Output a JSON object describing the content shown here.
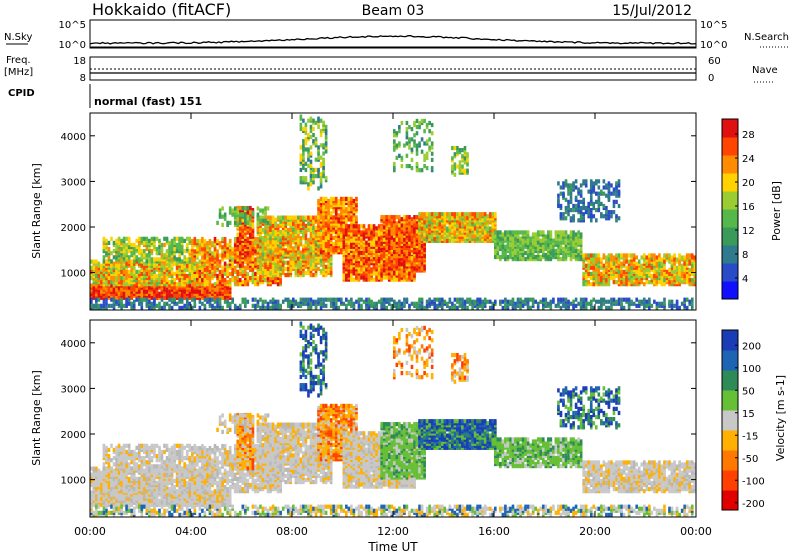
{
  "header": {
    "station": "Hokkaido (fitACF)",
    "beam": "Beam 03",
    "date": "15/Jul/2012"
  },
  "strips": {
    "nsky_label": "N.Sky",
    "nsky_ticks": [
      "10^5",
      "10^0"
    ],
    "nsearch_label": "N.Search",
    "freq_label": "Freq.",
    "freq_unit": "[MHz]",
    "freq_ticks": [
      "18",
      "8"
    ],
    "nave_label": "Nave",
    "nave_ticks": [
      "60",
      "0"
    ],
    "cpid_label": "CPID",
    "cpid_text": "normal (fast) 151"
  },
  "chart_data": [
    {
      "type": "heatmap",
      "name": "power",
      "ylabel": "Slant Range [km]",
      "ylim": [
        180,
        4500
      ],
      "yticks": [
        1000,
        2000,
        3000,
        4000
      ],
      "xlim": [
        0,
        24
      ],
      "colorbar": {
        "label": "Power [dB]",
        "ticks": [
          4,
          8,
          12,
          16,
          20,
          24,
          28
        ],
        "colors": [
          "#1010ff",
          "#2a4bc8",
          "#2f7a8c",
          "#3a9a5a",
          "#56b84a",
          "#9acd32",
          "#ffd200",
          "#ff8c00",
          "#ff4500",
          "#e01010"
        ],
        "range": [
          0,
          30
        ]
      }
    },
    {
      "type": "heatmap",
      "name": "velocity",
      "ylabel": "Slant Range [km]",
      "ylim": [
        180,
        4500
      ],
      "yticks": [
        1000,
        2000,
        3000,
        4000
      ],
      "xlim": [
        0,
        24
      ],
      "xlabel": "Time UT",
      "xticks": [
        "00:00",
        "04:00",
        "08:00",
        "12:00",
        "16:00",
        "20:00",
        "00:00"
      ],
      "colorbar": {
        "label": "Velocity [m s-1]",
        "ticks": [
          "200",
          "100",
          "50",
          "15",
          "-15",
          "-50",
          "-100",
          "-200"
        ],
        "colors": [
          "#1a3cb4",
          "#1e64b4",
          "#2e8b57",
          "#66c036",
          "#c8c8c8",
          "#ffb000",
          "#ff7800",
          "#ff4000",
          "#e00000"
        ]
      }
    }
  ]
}
